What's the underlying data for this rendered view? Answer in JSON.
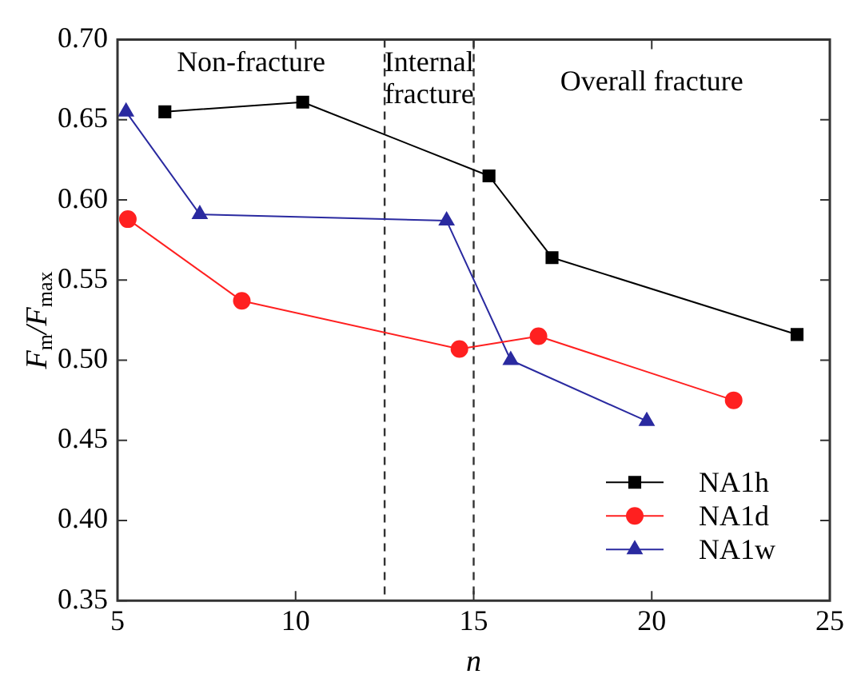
{
  "chart_data": {
    "type": "line",
    "xlabel": "n",
    "ylabel": "F$_{m}$/F$_{max}$",
    "xlim": [
      5,
      25
    ],
    "xticks": [
      5,
      10,
      15,
      20,
      25
    ],
    "ylim": [
      0.35,
      0.7
    ],
    "yticks": [
      0.35,
      {
        "value": 0.4,
        "label": "0.40"
      },
      0.45,
      {
        "value": 0.5,
        "label": "0.50"
      },
      0.55,
      {
        "value": 0.6,
        "label": "0.60"
      },
      0.65,
      {
        "value": 0.7,
        "label": "0.70"
      }
    ],
    "grid": false,
    "legend": "bottom right",
    "annotations": [
      "Non-fracture",
      "Internal\nfracture",
      "Overall fracture"
    ],
    "ref_lines": [
      {
        "axis": "x",
        "value": 12.5,
        "color": "#333333",
        "line_style": "dashed"
      },
      {
        "axis": "x",
        "value": 15,
        "color": "#333333",
        "line_style": "dashed"
      }
    ],
    "series": [
      {
        "name": "NA1h",
        "color": "#000000",
        "marker": "square",
        "x": [
          6.33,
          10.2,
          15.43,
          17.2,
          24.08
        ],
        "values": [
          0.655,
          0.661,
          0.615,
          0.564,
          0.516
        ]
      },
      {
        "name": "NA1d",
        "color": "#ff2020",
        "marker": "circle",
        "x": [
          5.29,
          8.49,
          14.6,
          16.82,
          22.3
        ],
        "values": [
          0.588,
          0.537,
          0.507,
          0.515,
          0.475
        ]
      },
      {
        "name": "NA1w",
        "color": "#2a2aa0",
        "marker": "triangle",
        "x": [
          5.24,
          7.31,
          14.24,
          16.04,
          19.86
        ],
        "values": [
          0.655,
          0.591,
          0.587,
          0.5,
          0.462
        ]
      }
    ]
  }
}
